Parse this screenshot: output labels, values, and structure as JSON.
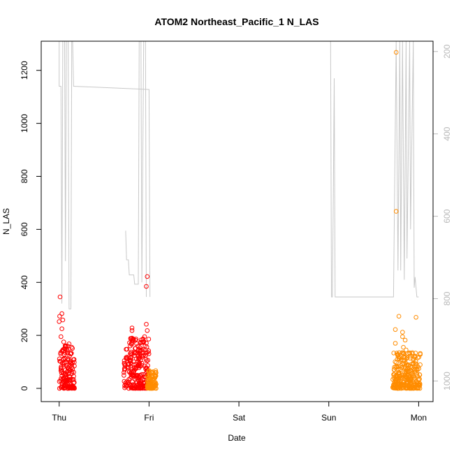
{
  "chart_data": {
    "type": "scatter",
    "title": "ATOM2 Northeast_Pacific_1 N_LAS",
    "xlabel": "Date",
    "ylabel": "N_LAS",
    "x_ticks": [
      "Thu",
      "Fri",
      "Sat",
      "Sun",
      "Mon"
    ],
    "x_range_days": [
      -0.2,
      4.16
    ],
    "ylim": [
      -50,
      1310
    ],
    "y_ticks": [
      0,
      200,
      400,
      600,
      800,
      1000,
      1200
    ],
    "right_axis": {
      "label": "",
      "reversed": true,
      "ticks": [
        200,
        400,
        600,
        800,
        1000
      ],
      "range": [
        1050,
        175
      ],
      "color": "#b8b8b8"
    },
    "grid": false,
    "colors": {
      "red": "#ff0000",
      "orange": "#ff8c00",
      "depth_line": "#c8c8c8"
    },
    "series": [
      {
        "color": "red",
        "clusters": [
          {
            "x": [
              0.0,
              0.17
            ],
            "y": [
              0,
              170
            ]
          },
          {
            "x": [
              0.72,
              1.0
            ],
            "y": [
              0,
              190
            ]
          }
        ],
        "outliers": [
          {
            "x": 0.01,
            "y": 345
          },
          {
            "x": 0.005,
            "y": 272
          },
          {
            "x": 0.0,
            "y": 252
          },
          {
            "x": 0.03,
            "y": 282
          },
          {
            "x": 0.04,
            "y": 258
          },
          {
            "x": 0.03,
            "y": 225
          },
          {
            "x": 0.02,
            "y": 195
          },
          {
            "x": 0.05,
            "y": 175
          },
          {
            "x": 0.11,
            "y": 168
          },
          {
            "x": 0.14,
            "y": 155
          },
          {
            "x": 0.08,
            "y": 160
          },
          {
            "x": 0.81,
            "y": 228
          },
          {
            "x": 0.81,
            "y": 218
          },
          {
            "x": 0.83,
            "y": 178
          },
          {
            "x": 0.79,
            "y": 160
          },
          {
            "x": 0.98,
            "y": 422
          },
          {
            "x": 0.97,
            "y": 385
          },
          {
            "x": 0.97,
            "y": 242
          },
          {
            "x": 0.98,
            "y": 218
          },
          {
            "x": 0.95,
            "y": 195
          }
        ]
      },
      {
        "color": "orange",
        "clusters": [
          {
            "x": [
              0.98,
              1.08
            ],
            "y": [
              0,
              70
            ]
          },
          {
            "x": [
              3.71,
              4.02
            ],
            "y": [
              0,
              135
            ]
          }
        ],
        "outliers": [
          {
            "x": 3.75,
            "y": 1268
          },
          {
            "x": 3.75,
            "y": 668
          },
          {
            "x": 3.78,
            "y": 272
          },
          {
            "x": 3.74,
            "y": 222
          },
          {
            "x": 3.82,
            "y": 212
          },
          {
            "x": 3.82,
            "y": 195
          },
          {
            "x": 3.74,
            "y": 170
          },
          {
            "x": 3.85,
            "y": 182
          },
          {
            "x": 3.83,
            "y": 155
          },
          {
            "x": 3.97,
            "y": 268
          },
          {
            "x": 3.86,
            "y": 145
          }
        ]
      }
    ],
    "depth_trace": [
      {
        "segment": [
          [
            0.0,
            1320
          ],
          [
            0.0,
            1140
          ],
          [
            0.02,
            1140
          ],
          [
            0.03,
            320
          ],
          [
            0.04,
            1320
          ],
          [
            0.06,
            1320
          ],
          [
            0.07,
            480
          ],
          [
            0.08,
            1320
          ],
          [
            0.1,
            1320
          ],
          [
            0.11,
            300
          ],
          [
            0.13,
            300
          ],
          [
            0.14,
            1320
          ],
          [
            0.15,
            1320
          ],
          [
            0.16,
            1140
          ],
          [
            1.0,
            1128
          ],
          [
            1.01,
            345
          ]
        ]
      },
      {
        "segment": [
          [
            0.74,
            595
          ],
          [
            0.75,
            485
          ],
          [
            0.77,
            485
          ],
          [
            0.78,
            428
          ],
          [
            0.83,
            428
          ],
          [
            0.84,
            393
          ],
          [
            0.88,
            393
          ],
          [
            0.89,
            1320
          ],
          [
            0.91,
            1320
          ],
          [
            0.92,
            400
          ],
          [
            0.94,
            1320
          ],
          [
            0.96,
            1320
          ],
          [
            0.97,
            345
          ]
        ]
      },
      {
        "segment": [
          [
            3.02,
            1320
          ],
          [
            3.03,
            345
          ],
          [
            3.04,
            345
          ],
          [
            3.05,
            730
          ],
          [
            3.06,
            1170
          ],
          [
            3.07,
            345
          ],
          [
            3.72,
            345
          ],
          [
            3.75,
            1320
          ],
          [
            3.77,
            445
          ],
          [
            3.79,
            1320
          ],
          [
            3.8,
            445
          ],
          [
            3.82,
            1320
          ],
          [
            3.84,
            410
          ],
          [
            3.86,
            1320
          ],
          [
            3.87,
            490
          ],
          [
            3.9,
            1320
          ],
          [
            3.91,
            600
          ],
          [
            3.94,
            1320
          ],
          [
            3.95,
            380
          ],
          [
            3.96,
            420
          ],
          [
            3.98,
            345
          ],
          [
            4.0,
            345
          ]
        ]
      }
    ]
  }
}
